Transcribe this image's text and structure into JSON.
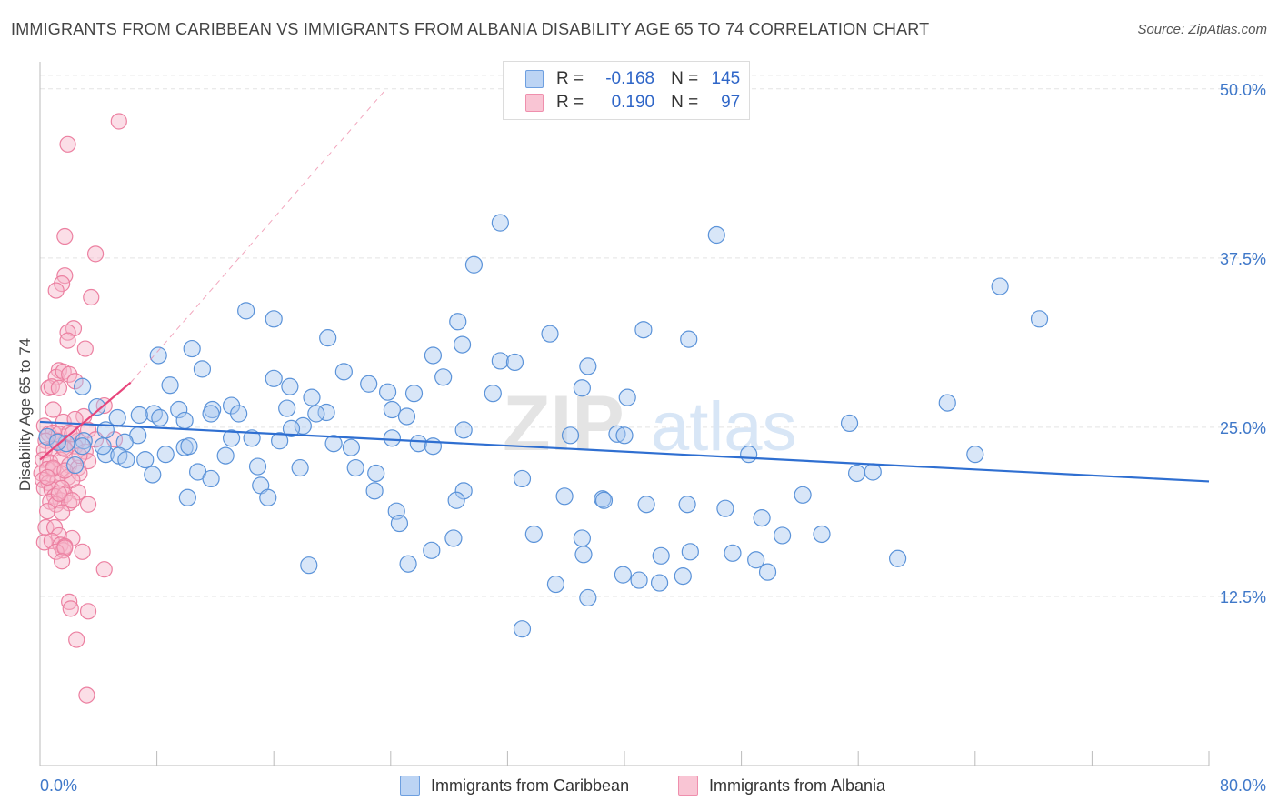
{
  "title": "IMMIGRANTS FROM CARIBBEAN VS IMMIGRANTS FROM ALBANIA DISABILITY AGE 65 TO 74 CORRELATION CHART",
  "source": "Source: ZipAtlas.com",
  "watermark": {
    "zip": "ZIP",
    "atlas": "atlas"
  },
  "legend": {
    "r_label": "R =",
    "n_label": "N =",
    "caribbean": {
      "r": "-0.168",
      "n": "145"
    },
    "albania": {
      "r": "0.190",
      "n": "97"
    }
  },
  "colors": {
    "caribbean_fill": "#a9c8f0",
    "caribbean_stroke": "#5b93d9",
    "caribbean_line": "#2f6fd1",
    "albania_fill": "#f7b6c9",
    "albania_stroke": "#ec80a1",
    "albania_line": "#e8467c",
    "tick_label": "#3f78c9",
    "grid": "#e3e3e3",
    "axis": "#bbbbbb"
  },
  "chart_data": {
    "type": "scatter",
    "title": "IMMIGRANTS FROM CARIBBEAN VS IMMIGRANTS FROM ALBANIA DISABILITY AGE 65 TO 74 CORRELATION CHART",
    "xlabel": "",
    "ylabel": "Disability Age 65 to 74",
    "xlim": [
      0,
      80
    ],
    "ylim": [
      0,
      52
    ],
    "x_tick_labels": [
      "0.0%",
      "80.0%"
    ],
    "y_ticks": [
      12.5,
      25.0,
      37.5,
      50.0
    ],
    "y_tick_labels": [
      "12.5%",
      "25.0%",
      "37.5%",
      "50.0%"
    ],
    "grid": true,
    "series": [
      {
        "name": "Immigrants from Caribbean",
        "trend": {
          "x0": 0,
          "y0": 25.4,
          "x1": 80,
          "y1": 21.0
        },
        "points": [
          [
            31.5,
            40.1
          ],
          [
            46.3,
            39.2
          ],
          [
            29.7,
            37.0
          ],
          [
            65.7,
            35.4
          ],
          [
            68.4,
            33.0
          ],
          [
            14.1,
            33.6
          ],
          [
            28.6,
            32.8
          ],
          [
            16.0,
            33.0
          ],
          [
            34.9,
            31.9
          ],
          [
            41.3,
            32.2
          ],
          [
            44.4,
            31.5
          ],
          [
            19.7,
            31.6
          ],
          [
            28.9,
            31.1
          ],
          [
            8.1,
            30.3
          ],
          [
            10.4,
            30.8
          ],
          [
            26.9,
            30.3
          ],
          [
            31.5,
            29.9
          ],
          [
            32.5,
            29.8
          ],
          [
            37.5,
            29.5
          ],
          [
            11.1,
            29.3
          ],
          [
            20.8,
            29.1
          ],
          [
            16.0,
            28.6
          ],
          [
            27.6,
            28.7
          ],
          [
            2.9,
            28.0
          ],
          [
            8.9,
            28.1
          ],
          [
            17.1,
            28.0
          ],
          [
            22.5,
            28.2
          ],
          [
            23.8,
            27.6
          ],
          [
            25.6,
            27.5
          ],
          [
            31.0,
            27.5
          ],
          [
            37.1,
            27.9
          ],
          [
            18.6,
            27.2
          ],
          [
            40.2,
            27.2
          ],
          [
            62.1,
            26.8
          ],
          [
            3.9,
            26.5
          ],
          [
            13.1,
            26.6
          ],
          [
            11.8,
            26.3
          ],
          [
            16.9,
            26.4
          ],
          [
            19.6,
            26.1
          ],
          [
            24.1,
            26.3
          ],
          [
            7.8,
            26.0
          ],
          [
            9.5,
            26.3
          ],
          [
            11.7,
            26.0
          ],
          [
            13.6,
            26.0
          ],
          [
            18.9,
            26.0
          ],
          [
            25.1,
            25.8
          ],
          [
            5.3,
            25.7
          ],
          [
            6.8,
            25.9
          ],
          [
            8.2,
            25.7
          ],
          [
            9.9,
            25.5
          ],
          [
            18.0,
            25.1
          ],
          [
            55.4,
            25.3
          ],
          [
            17.2,
            24.9
          ],
          [
            4.5,
            24.8
          ],
          [
            6.7,
            24.4
          ],
          [
            29.0,
            24.8
          ],
          [
            36.3,
            24.4
          ],
          [
            39.5,
            24.5
          ],
          [
            40.0,
            24.4
          ],
          [
            24.1,
            24.2
          ],
          [
            13.1,
            24.2
          ],
          [
            14.5,
            24.2
          ],
          [
            16.4,
            24.0
          ],
          [
            3.0,
            24.0
          ],
          [
            5.8,
            23.9
          ],
          [
            1.8,
            23.8
          ],
          [
            2.9,
            23.6
          ],
          [
            9.9,
            23.5
          ],
          [
            20.1,
            23.8
          ],
          [
            21.3,
            23.5
          ],
          [
            25.9,
            23.8
          ],
          [
            26.9,
            23.6
          ],
          [
            0.5,
            24.3
          ],
          [
            1.2,
            23.9
          ],
          [
            4.5,
            23.0
          ],
          [
            5.4,
            22.9
          ],
          [
            8.6,
            23.0
          ],
          [
            12.7,
            22.9
          ],
          [
            48.5,
            23.0
          ],
          [
            64.0,
            23.0
          ],
          [
            5.9,
            22.6
          ],
          [
            7.2,
            22.6
          ],
          [
            2.4,
            22.2
          ],
          [
            14.9,
            22.1
          ],
          [
            17.8,
            22.0
          ],
          [
            21.6,
            22.0
          ],
          [
            23.0,
            21.6
          ],
          [
            33.0,
            21.2
          ],
          [
            10.8,
            21.7
          ],
          [
            7.7,
            21.5
          ],
          [
            11.7,
            21.2
          ],
          [
            55.9,
            21.6
          ],
          [
            57.0,
            21.7
          ],
          [
            15.1,
            20.7
          ],
          [
            22.9,
            20.3
          ],
          [
            29.0,
            20.3
          ],
          [
            52.2,
            20.0
          ],
          [
            10.1,
            19.8
          ],
          [
            15.6,
            19.8
          ],
          [
            28.5,
            19.6
          ],
          [
            35.9,
            19.9
          ],
          [
            38.5,
            19.7
          ],
          [
            38.6,
            19.6
          ],
          [
            44.3,
            19.3
          ],
          [
            41.5,
            19.3
          ],
          [
            46.9,
            19.0
          ],
          [
            24.4,
            18.8
          ],
          [
            49.4,
            18.3
          ],
          [
            24.6,
            17.9
          ],
          [
            33.8,
            17.1
          ],
          [
            37.1,
            16.8
          ],
          [
            53.5,
            17.1
          ],
          [
            50.8,
            17.0
          ],
          [
            28.3,
            16.8
          ],
          [
            26.8,
            15.9
          ],
          [
            42.5,
            15.5
          ],
          [
            44.5,
            15.8
          ],
          [
            37.2,
            15.6
          ],
          [
            47.4,
            15.7
          ],
          [
            58.7,
            15.3
          ],
          [
            49.0,
            15.2
          ],
          [
            18.4,
            14.8
          ],
          [
            25.2,
            14.9
          ],
          [
            49.8,
            14.3
          ],
          [
            39.9,
            14.1
          ],
          [
            44.0,
            14.0
          ],
          [
            35.3,
            13.4
          ],
          [
            41.0,
            13.7
          ],
          [
            42.4,
            13.5
          ],
          [
            37.5,
            12.4
          ],
          [
            33.0,
            10.1
          ],
          [
            10.2,
            23.6
          ],
          [
            4.3,
            23.6
          ]
        ]
      },
      {
        "name": "Immigrants from Albania",
        "trend": {
          "x0": 0,
          "y0": 22.6,
          "x1": 6.2,
          "y1": 28.3
        },
        "trend_extension": {
          "x0": 6.2,
          "y0": 28.3,
          "x1": 23.7,
          "y1": 50.0
        },
        "points": [
          [
            5.4,
            47.6
          ],
          [
            1.9,
            45.9
          ],
          [
            1.7,
            39.1
          ],
          [
            3.8,
            37.8
          ],
          [
            1.7,
            36.2
          ],
          [
            1.5,
            35.6
          ],
          [
            1.1,
            35.1
          ],
          [
            3.5,
            34.6
          ],
          [
            2.3,
            32.3
          ],
          [
            1.9,
            32.0
          ],
          [
            1.9,
            31.4
          ],
          [
            3.1,
            30.8
          ],
          [
            1.3,
            29.2
          ],
          [
            1.1,
            28.7
          ],
          [
            1.6,
            29.1
          ],
          [
            2.0,
            28.9
          ],
          [
            2.4,
            28.4
          ],
          [
            0.6,
            27.9
          ],
          [
            0.8,
            28.0
          ],
          [
            1.3,
            27.9
          ],
          [
            0.9,
            26.3
          ],
          [
            3.0,
            25.8
          ],
          [
            1.6,
            25.4
          ],
          [
            2.4,
            25.6
          ],
          [
            0.3,
            25.1
          ],
          [
            0.6,
            24.5
          ],
          [
            0.9,
            24.6
          ],
          [
            1.3,
            24.5
          ],
          [
            2.0,
            24.6
          ],
          [
            3.3,
            24.8
          ],
          [
            0.4,
            24.0
          ],
          [
            1.2,
            24.0
          ],
          [
            2.6,
            24.0
          ],
          [
            5.1,
            24.1
          ],
          [
            0.3,
            23.3
          ],
          [
            0.9,
            23.4
          ],
          [
            1.6,
            23.5
          ],
          [
            2.4,
            23.6
          ],
          [
            3.1,
            23.2
          ],
          [
            0.2,
            22.6
          ],
          [
            0.7,
            22.4
          ],
          [
            1.4,
            22.6
          ],
          [
            2.0,
            22.2
          ],
          [
            2.6,
            22.0
          ],
          [
            3.3,
            22.5
          ],
          [
            0.1,
            21.6
          ],
          [
            0.5,
            21.9
          ],
          [
            0.9,
            21.9
          ],
          [
            1.4,
            21.6
          ],
          [
            1.9,
            21.3
          ],
          [
            2.7,
            21.6
          ],
          [
            0.2,
            21.1
          ],
          [
            0.6,
            20.9
          ],
          [
            1.2,
            21.0
          ],
          [
            2.2,
            21.1
          ],
          [
            0.3,
            20.5
          ],
          [
            0.8,
            20.4
          ],
          [
            1.5,
            20.5
          ],
          [
            2.6,
            20.2
          ],
          [
            1.0,
            19.9
          ],
          [
            1.4,
            19.6
          ],
          [
            1.7,
            20.0
          ],
          [
            0.7,
            19.5
          ],
          [
            1.1,
            19.3
          ],
          [
            2.0,
            19.4
          ],
          [
            3.3,
            19.3
          ],
          [
            0.5,
            18.8
          ],
          [
            1.5,
            18.7
          ],
          [
            0.4,
            17.6
          ],
          [
            1.0,
            17.6
          ],
          [
            1.3,
            17.0
          ],
          [
            0.3,
            16.5
          ],
          [
            0.8,
            16.6
          ],
          [
            2.2,
            16.8
          ],
          [
            1.4,
            16.3
          ],
          [
            1.6,
            15.9
          ],
          [
            1.7,
            16.2
          ],
          [
            1.1,
            15.8
          ],
          [
            1.7,
            16.1
          ],
          [
            2.9,
            15.8
          ],
          [
            1.5,
            15.1
          ],
          [
            4.4,
            14.5
          ],
          [
            2.0,
            12.1
          ],
          [
            3.3,
            11.4
          ],
          [
            2.1,
            11.6
          ],
          [
            2.5,
            9.3
          ],
          [
            3.2,
            5.2
          ],
          [
            2.2,
            24.5
          ],
          [
            1.7,
            23.4
          ],
          [
            2.7,
            22.9
          ],
          [
            0.9,
            22.0
          ],
          [
            1.3,
            20.1
          ],
          [
            2.2,
            19.6
          ],
          [
            0.5,
            21.3
          ],
          [
            1.7,
            21.8
          ],
          [
            3.8,
            24.1
          ],
          [
            4.4,
            26.6
          ]
        ]
      }
    ]
  },
  "bottom_legend": {
    "caribbean_label": "Immigrants from Caribbean",
    "albania_label": "Immigrants from Albania"
  }
}
